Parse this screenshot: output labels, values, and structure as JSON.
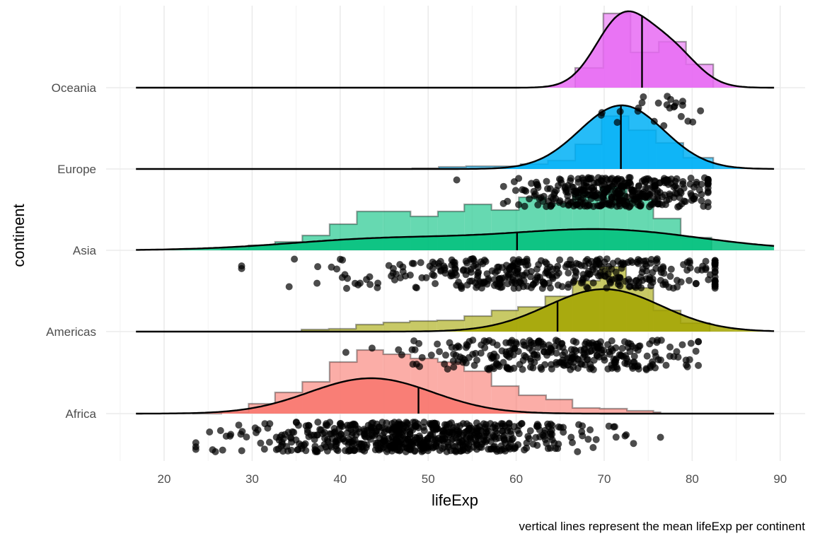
{
  "chart_data": {
    "type": "raincloud",
    "title": "",
    "xlabel": "lifeExp",
    "ylabel": "continent",
    "caption": "vertical lines represent the mean lifeExp per continent",
    "xlim": [
      15,
      92
    ],
    "x_ticks": [
      20,
      30,
      40,
      50,
      60,
      70,
      80,
      90
    ],
    "x_tick_labels": [
      "20",
      "30",
      "40",
      "50",
      "60",
      "70",
      "80",
      "90"
    ],
    "grid": true,
    "legend": "none",
    "density_range": [
      16.8,
      89.3
    ],
    "categories": [
      "Oceania",
      "Europe",
      "Asia",
      "Americas",
      "Africa"
    ],
    "series": [
      {
        "name": "Oceania",
        "color": "#E76BF3",
        "mean": 74.3,
        "min": 69.1,
        "max": 81.2,
        "density_peaks": [
          [
            72,
            1.0
          ],
          [
            77.5,
            0.55
          ]
        ],
        "histogram": [
          {
            "x0": 66.7,
            "x1": 69.9,
            "h": 0.28
          },
          {
            "x0": 69.9,
            "x1": 73.0,
            "h": 1.05
          },
          {
            "x0": 73.0,
            "x1": 76.2,
            "h": 0.5
          },
          {
            "x0": 76.2,
            "x1": 79.3,
            "h": 0.65
          },
          {
            "x0": 79.3,
            "x1": 82.4,
            "h": 0.33
          }
        ]
      },
      {
        "name": "Europe",
        "color": "#00B0F6",
        "mean": 71.9,
        "min": 43.6,
        "max": 81.8,
        "density_peaks": [
          [
            72,
            1.0
          ]
        ],
        "histogram": [
          {
            "x0": 42.0,
            "x1": 48.2,
            "h": 0.0
          },
          {
            "x0": 48.2,
            "x1": 51.2,
            "h": 0.01
          },
          {
            "x0": 51.2,
            "x1": 54.3,
            "h": 0.03
          },
          {
            "x0": 54.3,
            "x1": 57.4,
            "h": 0.04
          },
          {
            "x0": 57.4,
            "x1": 60.5,
            "h": 0.04
          },
          {
            "x0": 60.5,
            "x1": 63.6,
            "h": 0.07
          },
          {
            "x0": 63.6,
            "x1": 66.7,
            "h": 0.12
          },
          {
            "x0": 66.7,
            "x1": 69.7,
            "h": 0.35
          },
          {
            "x0": 69.7,
            "x1": 72.8,
            "h": 0.75
          },
          {
            "x0": 72.8,
            "x1": 75.9,
            "h": 0.55
          },
          {
            "x0": 75.9,
            "x1": 79.0,
            "h": 0.37
          },
          {
            "x0": 79.0,
            "x1": 82.4,
            "h": 0.16
          }
        ]
      },
      {
        "name": "Asia",
        "color": "#00BF7D",
        "mean": 60.1,
        "min": 28.8,
        "max": 82.6,
        "density_peaks": [
          [
            45,
            0.55
          ],
          [
            70,
            1.0
          ]
        ],
        "histogram": [
          {
            "x0": 26.5,
            "x1": 29.6,
            "h": 0.02
          },
          {
            "x0": 29.6,
            "x1": 32.6,
            "h": 0.07
          },
          {
            "x0": 32.6,
            "x1": 35.7,
            "h": 0.12
          },
          {
            "x0": 35.7,
            "x1": 38.8,
            "h": 0.21
          },
          {
            "x0": 38.8,
            "x1": 41.9,
            "h": 0.37
          },
          {
            "x0": 41.9,
            "x1": 44.9,
            "h": 0.55
          },
          {
            "x0": 44.9,
            "x1": 48.0,
            "h": 0.55
          },
          {
            "x0": 48.0,
            "x1": 51.1,
            "h": 0.48
          },
          {
            "x0": 51.1,
            "x1": 54.1,
            "h": 0.55
          },
          {
            "x0": 54.1,
            "x1": 57.2,
            "h": 0.65
          },
          {
            "x0": 57.2,
            "x1": 60.3,
            "h": 0.57
          },
          {
            "x0": 60.3,
            "x1": 63.4,
            "h": 0.75
          },
          {
            "x0": 63.4,
            "x1": 66.4,
            "h": 0.67
          },
          {
            "x0": 66.4,
            "x1": 69.5,
            "h": 0.82
          },
          {
            "x0": 69.5,
            "x1": 72.6,
            "h": 0.9
          },
          {
            "x0": 72.6,
            "x1": 75.6,
            "h": 0.73
          },
          {
            "x0": 75.6,
            "x1": 78.7,
            "h": 0.45
          },
          {
            "x0": 78.7,
            "x1": 82.2,
            "h": 0.18
          }
        ]
      },
      {
        "name": "Americas",
        "color": "#A3A500",
        "mean": 64.7,
        "min": 37.6,
        "max": 80.7,
        "density_peaks": [
          [
            70,
            1.0
          ]
        ],
        "histogram": [
          {
            "x0": 35.6,
            "x1": 38.7,
            "h": 0.03
          },
          {
            "x0": 38.7,
            "x1": 41.8,
            "h": 0.04
          },
          {
            "x0": 41.8,
            "x1": 44.9,
            "h": 0.1
          },
          {
            "x0": 44.9,
            "x1": 47.9,
            "h": 0.13
          },
          {
            "x0": 47.9,
            "x1": 51.0,
            "h": 0.15
          },
          {
            "x0": 51.0,
            "x1": 54.1,
            "h": 0.16
          },
          {
            "x0": 54.1,
            "x1": 57.2,
            "h": 0.22
          },
          {
            "x0": 57.2,
            "x1": 60.2,
            "h": 0.3
          },
          {
            "x0": 60.2,
            "x1": 63.3,
            "h": 0.35
          },
          {
            "x0": 63.3,
            "x1": 66.4,
            "h": 0.5
          },
          {
            "x0": 66.4,
            "x1": 69.5,
            "h": 0.72
          },
          {
            "x0": 69.5,
            "x1": 72.5,
            "h": 0.92
          },
          {
            "x0": 72.5,
            "x1": 75.6,
            "h": 0.62
          },
          {
            "x0": 75.6,
            "x1": 78.7,
            "h": 0.3
          },
          {
            "x0": 78.7,
            "x1": 82.0,
            "h": 0.12
          }
        ]
      },
      {
        "name": "Africa",
        "color": "#F8766D",
        "mean": 48.9,
        "min": 23.6,
        "max": 76.4,
        "density_peaks": [
          [
            43.5,
            1.0
          ]
        ],
        "histogram": [
          {
            "x0": 23.2,
            "x1": 26.5,
            "h": 0.0
          },
          {
            "x0": 26.5,
            "x1": 29.6,
            "h": 0.02
          },
          {
            "x0": 29.6,
            "x1": 32.6,
            "h": 0.14
          },
          {
            "x0": 32.6,
            "x1": 35.7,
            "h": 0.3
          },
          {
            "x0": 35.7,
            "x1": 38.8,
            "h": 0.45
          },
          {
            "x0": 38.8,
            "x1": 41.9,
            "h": 0.73
          },
          {
            "x0": 41.9,
            "x1": 44.9,
            "h": 0.9
          },
          {
            "x0": 44.9,
            "x1": 48.0,
            "h": 0.84
          },
          {
            "x0": 48.0,
            "x1": 51.1,
            "h": 0.78
          },
          {
            "x0": 51.1,
            "x1": 54.1,
            "h": 0.73
          },
          {
            "x0": 54.1,
            "x1": 57.2,
            "h": 0.6
          },
          {
            "x0": 57.2,
            "x1": 60.3,
            "h": 0.39
          },
          {
            "x0": 60.3,
            "x1": 63.4,
            "h": 0.26
          },
          {
            "x0": 63.4,
            "x1": 66.4,
            "h": 0.2
          },
          {
            "x0": 66.4,
            "x1": 69.5,
            "h": 0.08
          },
          {
            "x0": 69.5,
            "x1": 72.6,
            "h": 0.07
          },
          {
            "x0": 72.6,
            "x1": 75.6,
            "h": 0.04
          },
          {
            "x0": 75.6,
            "x1": 76.4,
            "h": 0.02
          }
        ]
      }
    ]
  }
}
